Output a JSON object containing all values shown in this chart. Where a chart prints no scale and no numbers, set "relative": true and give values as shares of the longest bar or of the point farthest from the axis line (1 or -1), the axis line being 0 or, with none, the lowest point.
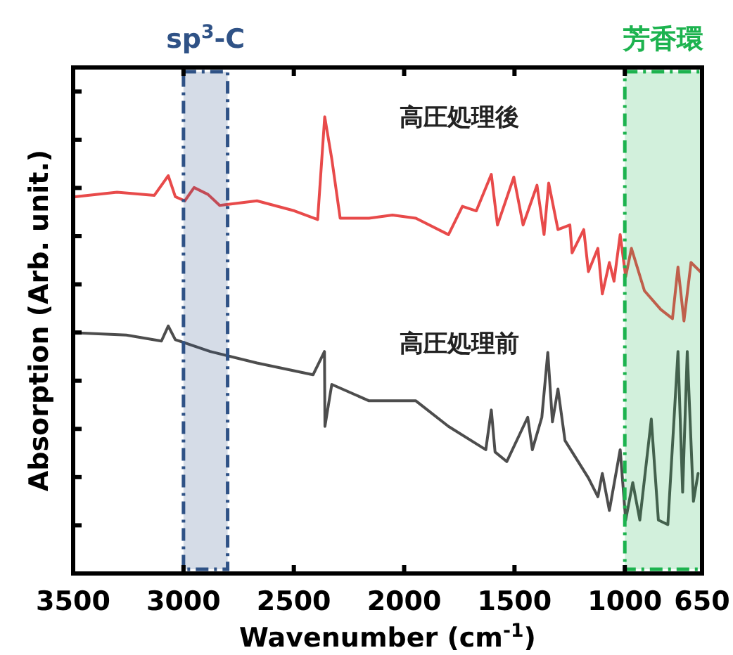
{
  "chart_data": {
    "type": "line",
    "relative": true,
    "xlabel": "Wavenumber (cm$^{-1}$)",
    "ylabel": "Absorption (Arb. unit.)",
    "xlim": [
      3500,
      650
    ],
    "xticks": [
      3500,
      3000,
      2500,
      2000,
      1500,
      1000,
      650
    ],
    "bands": [
      {
        "axis": "x",
        "from": 3000,
        "to": 2800,
        "label": "sp$^{3}$-C",
        "color": "#2f5286"
      },
      {
        "axis": "x",
        "from": 1000,
        "to": 650,
        "label": "芳香環",
        "color": "#1db34f"
      }
    ],
    "series": [
      {
        "name": "高圧処理後",
        "color": "#e84a4a",
        "x": [
          3492,
          3301,
          3132,
          3069,
          3037,
          2994,
          2952,
          2889,
          2836,
          2667,
          2497,
          2392,
          2360,
          2328,
          2290,
          2159,
          2053,
          1947,
          1799,
          1736,
          1673,
          1605,
          1577,
          1503,
          1461,
          1398,
          1366,
          1345,
          1303,
          1249,
          1239,
          1186,
          1165,
          1122,
          1102,
          1070,
          1049,
          1021,
          996,
          970,
          911,
          837,
          784,
          759,
          732,
          700,
          658
        ],
        "values": [
          0.825,
          0.835,
          0.828,
          0.871,
          0.825,
          0.816,
          0.845,
          0.83,
          0.806,
          0.816,
          0.794,
          0.775,
          1.0,
          0.908,
          0.778,
          0.778,
          0.785,
          0.778,
          0.742,
          0.804,
          0.794,
          0.874,
          0.763,
          0.868,
          0.763,
          0.85,
          0.742,
          0.855,
          0.753,
          0.763,
          0.702,
          0.753,
          0.661,
          0.712,
          0.612,
          0.681,
          0.64,
          0.742,
          0.65,
          0.712,
          0.619,
          0.578,
          0.558,
          0.671,
          0.553,
          0.681,
          0.661
        ]
      },
      {
        "name": "高圧処理前",
        "color": "#4d4d4d",
        "x": [
          3492,
          3259,
          3100,
          3069,
          3037,
          2879,
          2667,
          2413,
          2361,
          2359,
          2328,
          2159,
          1947,
          1799,
          1630,
          1605,
          1588,
          1535,
          1440,
          1419,
          1376,
          1349,
          1328,
          1303,
          1271,
          1165,
          1122,
          1102,
          1070,
          1021,
          996,
          964,
          932,
          880,
          848,
          805,
          759,
          738,
          717,
          689,
          668
        ],
        "values": [
          0.527,
          0.522,
          0.509,
          0.542,
          0.512,
          0.486,
          0.461,
          0.435,
          0.486,
          0.322,
          0.414,
          0.378,
          0.378,
          0.322,
          0.271,
          0.358,
          0.266,
          0.245,
          0.342,
          0.271,
          0.342,
          0.484,
          0.332,
          0.404,
          0.291,
          0.209,
          0.168,
          0.219,
          0.138,
          0.271,
          0.117,
          0.199,
          0.117,
          0.338,
          0.117,
          0.107,
          0.486,
          0.178,
          0.486,
          0.158,
          0.219
        ]
      }
    ]
  }
}
